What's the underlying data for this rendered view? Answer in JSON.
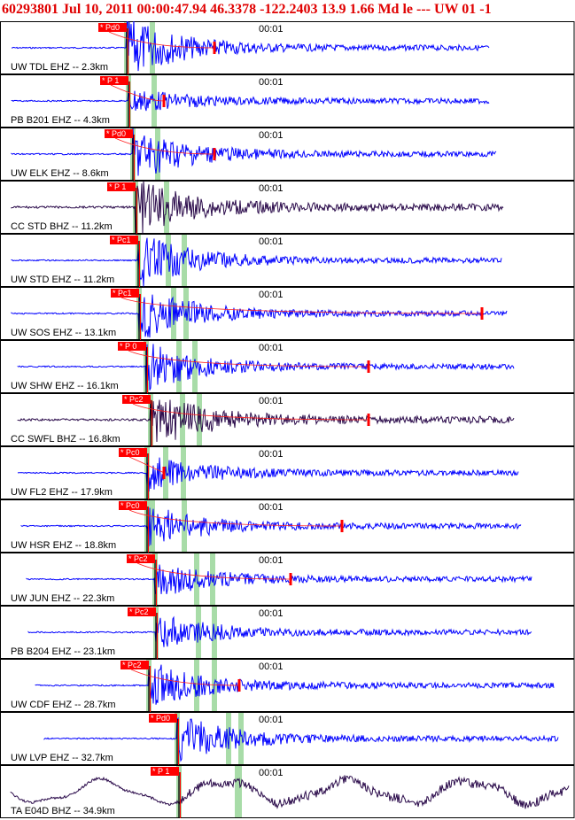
{
  "header": {
    "title": "60293801 Jul 10, 2011 00:00:47.94   46.3378 -122.2403 13.9 1.66 Md le --- UW 01  -1"
  },
  "colors": {
    "trace_blue": "#0000ff",
    "trace_dark": "#2a0a4a",
    "pick_red": "#ff0000",
    "green_band": "#a8dca8",
    "coda_red": "#ff2020"
  },
  "chart_data": {
    "type": "seismogram",
    "time_label": "00:01",
    "traces": [
      {
        "label": "UW TDL EHZ -- 2.3km",
        "phase": "Pd0",
        "color": "blue"
      },
      {
        "label": "PB B201 EHZ -- 4.3km",
        "phase": "P 1",
        "color": "blue"
      },
      {
        "label": "UW ELK EHZ -- 8.6km",
        "phase": "Pd0",
        "color": "blue"
      },
      {
        "label": "CC STD BHZ -- 11.2km",
        "phase": "P 1",
        "color": "dark"
      },
      {
        "label": "UW STD EHZ -- 11.2km",
        "phase": "Pc1",
        "color": "blue"
      },
      {
        "label": "UW SOS EHZ -- 13.1km",
        "phase": "Pc1",
        "color": "blue"
      },
      {
        "label": "UW SHW EHZ -- 16.1km",
        "phase": "P 0",
        "color": "blue"
      },
      {
        "label": "CC SWFL BHZ -- 16.8km",
        "phase": "Pc2",
        "color": "dark"
      },
      {
        "label": "UW FL2 EHZ -- 17.9km",
        "phase": "Pc0",
        "color": "blue"
      },
      {
        "label": "UW HSR EHZ -- 18.8km",
        "phase": "Pc0",
        "color": "blue"
      },
      {
        "label": "UW JUN EHZ -- 22.3km",
        "phase": "Pc2",
        "color": "blue"
      },
      {
        "label": "PB B204 EHZ -- 23.1km",
        "phase": "Pc2",
        "color": "blue"
      },
      {
        "label": "UW CDF EHZ -- 28.7km",
        "phase": "Pc2",
        "color": "blue"
      },
      {
        "label": "UW LVP EHZ -- 32.7km",
        "phase": "Pd0",
        "color": "blue"
      },
      {
        "label": "TA E04D BHZ -- 34.9km",
        "phase": "P 1",
        "color": "dark"
      }
    ]
  }
}
